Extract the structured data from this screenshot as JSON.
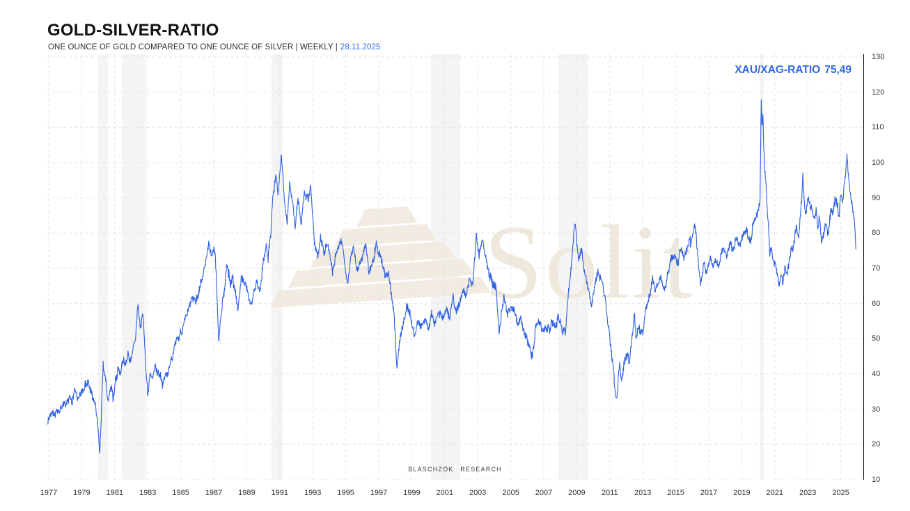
{
  "header": {
    "title": "GOLD-SILVER-RATIO",
    "subtitle": "ONE OUNCE OF GOLD COMPARED TO ONE OUNCE OF SILVER | WEEKLY |",
    "date": "28.11.2025"
  },
  "legend": {
    "label": "XAU/XAG-RATIO",
    "value": "75,49"
  },
  "watermark": {
    "text": "Solit",
    "logo": "gold-bars-pyramid"
  },
  "footer": {
    "credit": "BLASCHZOK RESEARCH"
  },
  "colors": {
    "line": "#2d5fe2",
    "accent": "#3168e6",
    "grid": "#e3e3e3",
    "band": "#f4f4f4",
    "axis": "#000000",
    "watermark_fill": "#f1ebe1",
    "watermark_text": "#eee8dd",
    "label": "#333333"
  },
  "chart_data": {
    "type": "line",
    "title": "GOLD-SILVER-RATIO",
    "xlabel": "",
    "ylabel": "",
    "ylim": [
      10,
      130
    ],
    "y_ticks": [
      10,
      20,
      30,
      40,
      50,
      60,
      70,
      80,
      90,
      100,
      110,
      120,
      130
    ],
    "x_ticks": [
      1977,
      1979,
      1981,
      1983,
      1985,
      1987,
      1989,
      1991,
      1993,
      1995,
      1997,
      1999,
      2001,
      2003,
      2005,
      2007,
      2009,
      2011,
      2013,
      2015,
      2017,
      2019,
      2021,
      2023,
      2025
    ],
    "grid": "dashed",
    "legend_position": "top-right",
    "shaded_periods": [
      [
        1980.0,
        1980.59
      ],
      [
        1981.43,
        1982.91
      ],
      [
        1990.5,
        1991.18
      ],
      [
        2000.16,
        2001.94
      ],
      [
        2007.89,
        2009.66
      ],
      [
        2020.08,
        2020.33
      ]
    ],
    "series": [
      {
        "name": "XAU/XAG-RATIO",
        "last_value": 75.49,
        "points": [
          [
            1976.95,
            27.5
          ],
          [
            1977.1,
            28.5
          ],
          [
            1977.3,
            29.2
          ],
          [
            1977.5,
            29.0
          ],
          [
            1977.7,
            30.2
          ],
          [
            1977.9,
            31.0
          ],
          [
            1978.1,
            31.4
          ],
          [
            1978.25,
            33.2
          ],
          [
            1978.4,
            32.3
          ],
          [
            1978.6,
            35.3
          ],
          [
            1978.8,
            33.1
          ],
          [
            1979.0,
            34.5
          ],
          [
            1979.2,
            37.8
          ],
          [
            1979.4,
            37.2
          ],
          [
            1979.6,
            34.0
          ],
          [
            1979.8,
            31.7
          ],
          [
            1979.95,
            26.0
          ],
          [
            1980.1,
            17.3
          ],
          [
            1980.3,
            42.4
          ],
          [
            1980.45,
            38.0
          ],
          [
            1980.6,
            32.1
          ],
          [
            1980.8,
            35.7
          ],
          [
            1980.9,
            32.3
          ],
          [
            1981.1,
            39.5
          ],
          [
            1981.2,
            41.6
          ],
          [
            1981.35,
            40.0
          ],
          [
            1981.5,
            43.6
          ],
          [
            1981.65,
            42.5
          ],
          [
            1981.8,
            45.0
          ],
          [
            1981.95,
            43.5
          ],
          [
            1982.1,
            46.5
          ],
          [
            1982.25,
            49.0
          ],
          [
            1982.4,
            60.3
          ],
          [
            1982.55,
            53.4
          ],
          [
            1982.7,
            57.4
          ],
          [
            1982.85,
            45.0
          ],
          [
            1983.0,
            34.3
          ],
          [
            1983.15,
            41.0
          ],
          [
            1983.3,
            38.5
          ],
          [
            1983.45,
            42.0
          ],
          [
            1983.6,
            39.5
          ],
          [
            1983.75,
            40.5
          ],
          [
            1983.9,
            37.6
          ],
          [
            1984.1,
            39.5
          ],
          [
            1984.3,
            42.0
          ],
          [
            1984.6,
            47.5
          ],
          [
            1984.8,
            49.5
          ],
          [
            1985.0,
            52.0
          ],
          [
            1985.2,
            54.5
          ],
          [
            1985.4,
            57.4
          ],
          [
            1985.6,
            60.0
          ],
          [
            1985.8,
            61.9
          ],
          [
            1985.9,
            59.9
          ],
          [
            1986.1,
            63.5
          ],
          [
            1986.3,
            67.8
          ],
          [
            1986.5,
            72.0
          ],
          [
            1986.7,
            76.1
          ],
          [
            1986.85,
            73.5
          ],
          [
            1987.0,
            75.0
          ],
          [
            1987.1,
            73.8
          ],
          [
            1987.3,
            49.9
          ],
          [
            1987.45,
            57.0
          ],
          [
            1987.6,
            62.7
          ],
          [
            1987.8,
            71.6
          ],
          [
            1988.0,
            65.3
          ],
          [
            1988.15,
            67.5
          ],
          [
            1988.3,
            63.7
          ],
          [
            1988.5,
            58.3
          ],
          [
            1988.7,
            68.6
          ],
          [
            1988.85,
            66.0
          ],
          [
            1989.0,
            64.6
          ],
          [
            1989.2,
            59.3
          ],
          [
            1989.4,
            62.5
          ],
          [
            1989.6,
            66.2
          ],
          [
            1989.8,
            63.9
          ],
          [
            1990.0,
            71.8
          ],
          [
            1990.2,
            77.1
          ],
          [
            1990.3,
            73.2
          ],
          [
            1990.45,
            80.0
          ],
          [
            1990.6,
            90.9
          ],
          [
            1990.8,
            96.2
          ],
          [
            1990.9,
            90.3
          ],
          [
            1991.1,
            101.8
          ],
          [
            1991.3,
            88.3
          ],
          [
            1991.45,
            83.0
          ],
          [
            1991.6,
            94.3
          ],
          [
            1991.8,
            87.9
          ],
          [
            1991.95,
            82.0
          ],
          [
            1992.1,
            89.9
          ],
          [
            1992.3,
            83.0
          ],
          [
            1992.5,
            91.9
          ],
          [
            1992.7,
            88.9
          ],
          [
            1992.9,
            92.3
          ],
          [
            1993.1,
            77.1
          ],
          [
            1993.3,
            73.2
          ],
          [
            1993.5,
            79.1
          ],
          [
            1993.7,
            74.8
          ],
          [
            1993.9,
            77.1
          ],
          [
            1994.2,
            68.6
          ],
          [
            1994.4,
            74.2
          ],
          [
            1994.6,
            76.1
          ],
          [
            1994.8,
            77.1
          ],
          [
            1995.1,
            65.7
          ],
          [
            1995.3,
            73.2
          ],
          [
            1995.5,
            76.5
          ],
          [
            1995.7,
            69.2
          ],
          [
            1996.0,
            73.2
          ],
          [
            1996.2,
            76.5
          ],
          [
            1996.4,
            69.6
          ],
          [
            1996.7,
            73.2
          ],
          [
            1996.85,
            77.7
          ],
          [
            1997.0,
            74.0
          ],
          [
            1997.2,
            71.8
          ],
          [
            1997.4,
            67.2
          ],
          [
            1997.6,
            67.8
          ],
          [
            1997.9,
            58.7
          ],
          [
            1998.1,
            41.6
          ],
          [
            1998.3,
            50.5
          ],
          [
            1998.5,
            54.0
          ],
          [
            1998.7,
            59.5
          ],
          [
            1998.9,
            56.8
          ],
          [
            1999.2,
            50.5
          ],
          [
            1999.4,
            55.8
          ],
          [
            1999.55,
            52.8
          ],
          [
            1999.8,
            55.8
          ],
          [
            2000.0,
            53.4
          ],
          [
            2000.2,
            56.4
          ],
          [
            2000.4,
            53.8
          ],
          [
            2000.6,
            58.0
          ],
          [
            2000.8,
            56.0
          ],
          [
            2001.1,
            58.7
          ],
          [
            2001.3,
            56.0
          ],
          [
            2001.5,
            61.3
          ],
          [
            2001.7,
            57.4
          ],
          [
            2001.9,
            59.9
          ],
          [
            2002.1,
            63.9
          ],
          [
            2002.3,
            61.3
          ],
          [
            2002.5,
            67.8
          ],
          [
            2002.7,
            65.3
          ],
          [
            2002.9,
            79.7
          ],
          [
            2003.1,
            73.8
          ],
          [
            2003.3,
            79.1
          ],
          [
            2003.5,
            72.5
          ],
          [
            2003.7,
            68.6
          ],
          [
            2003.9,
            64.6
          ],
          [
            2004.1,
            64.9
          ],
          [
            2004.3,
            51.4
          ],
          [
            2004.45,
            58.7
          ],
          [
            2004.6,
            61.3
          ],
          [
            2004.8,
            56.4
          ],
          [
            2005.0,
            59.3
          ],
          [
            2005.2,
            58.7
          ],
          [
            2005.4,
            54.8
          ],
          [
            2005.6,
            56.0
          ],
          [
            2005.9,
            50.5
          ],
          [
            2006.1,
            48.9
          ],
          [
            2006.3,
            45.1
          ],
          [
            2006.5,
            52.8
          ],
          [
            2006.7,
            56.0
          ],
          [
            2006.9,
            52.0
          ],
          [
            2007.1,
            54.0
          ],
          [
            2007.3,
            52.4
          ],
          [
            2007.5,
            54.4
          ],
          [
            2007.7,
            53.8
          ],
          [
            2007.9,
            56.4
          ],
          [
            2008.1,
            52.8
          ],
          [
            2008.3,
            51.1
          ],
          [
            2008.5,
            63.9
          ],
          [
            2008.7,
            72.5
          ],
          [
            2008.9,
            84.4
          ],
          [
            2009.0,
            77.1
          ],
          [
            2009.1,
            71.8
          ],
          [
            2009.3,
            74.8
          ],
          [
            2009.5,
            68.6
          ],
          [
            2009.7,
            63.3
          ],
          [
            2009.9,
            60.0
          ],
          [
            2010.1,
            66.0
          ],
          [
            2010.3,
            69.8
          ],
          [
            2010.5,
            66.0
          ],
          [
            2010.7,
            62.7
          ],
          [
            2010.9,
            54.4
          ],
          [
            2011.1,
            45.5
          ],
          [
            2011.25,
            39.0
          ],
          [
            2011.4,
            31.9
          ],
          [
            2011.6,
            42.2
          ],
          [
            2011.7,
            39.0
          ],
          [
            2011.9,
            43.6
          ],
          [
            2012.0,
            46.1
          ],
          [
            2012.2,
            43.0
          ],
          [
            2012.35,
            50.1
          ],
          [
            2012.5,
            56.8
          ],
          [
            2012.6,
            50.1
          ],
          [
            2012.75,
            53.0
          ],
          [
            2013.0,
            52.0
          ],
          [
            2013.2,
            58.7
          ],
          [
            2013.4,
            62.7
          ],
          [
            2013.6,
            66.6
          ],
          [
            2013.75,
            62.9
          ],
          [
            2013.9,
            65.3
          ],
          [
            2014.1,
            67.6
          ],
          [
            2014.3,
            63.3
          ],
          [
            2014.5,
            68.6
          ],
          [
            2014.7,
            71.8
          ],
          [
            2014.9,
            74.2
          ],
          [
            2015.1,
            71.2
          ],
          [
            2015.3,
            75.7
          ],
          [
            2015.5,
            73.2
          ],
          [
            2015.7,
            76.7
          ],
          [
            2015.9,
            77.7
          ],
          [
            2016.15,
            82.6
          ],
          [
            2016.5,
            65.9
          ],
          [
            2016.7,
            71.8
          ],
          [
            2016.85,
            69.2
          ],
          [
            2017.1,
            73.2
          ],
          [
            2017.25,
            70.5
          ],
          [
            2017.4,
            72.8
          ],
          [
            2017.6,
            71.2
          ],
          [
            2017.8,
            75.5
          ],
          [
            2018.1,
            73.5
          ],
          [
            2018.3,
            76.5
          ],
          [
            2018.5,
            75.5
          ],
          [
            2018.7,
            78.7
          ],
          [
            2018.9,
            76.7
          ],
          [
            2019.1,
            79.1
          ],
          [
            2019.3,
            80.4
          ],
          [
            2019.5,
            77.1
          ],
          [
            2019.7,
            82.4
          ],
          [
            2019.9,
            85.0
          ],
          [
            2020.1,
            87.4
          ],
          [
            2020.18,
            118.5
          ],
          [
            2020.22,
            110.0
          ],
          [
            2020.28,
            113.0
          ],
          [
            2020.38,
            99.2
          ],
          [
            2020.5,
            90.9
          ],
          [
            2020.6,
            83.0
          ],
          [
            2020.7,
            73.8
          ],
          [
            2020.8,
            76.5
          ],
          [
            2020.9,
            72.8
          ],
          [
            2021.1,
            69.8
          ],
          [
            2021.25,
            64.7
          ],
          [
            2021.4,
            67.8
          ],
          [
            2021.5,
            66.2
          ],
          [
            2021.6,
            70.5
          ],
          [
            2021.75,
            68.8
          ],
          [
            2021.9,
            72.8
          ],
          [
            2022.0,
            76.5
          ],
          [
            2022.1,
            74.2
          ],
          [
            2022.3,
            81.4
          ],
          [
            2022.45,
            79.1
          ],
          [
            2022.6,
            87.0
          ],
          [
            2022.7,
            96.2
          ],
          [
            2022.8,
            87.0
          ],
          [
            2022.9,
            85.4
          ],
          [
            2023.0,
            90.9
          ],
          [
            2023.2,
            87.6
          ],
          [
            2023.35,
            84.0
          ],
          [
            2023.5,
            87.0
          ],
          [
            2023.6,
            82.4
          ],
          [
            2023.7,
            84.6
          ],
          [
            2023.85,
            77.1
          ],
          [
            2024.0,
            80.4
          ],
          [
            2024.1,
            83.0
          ],
          [
            2024.25,
            79.5
          ],
          [
            2024.4,
            87.6
          ],
          [
            2024.5,
            85.6
          ],
          [
            2024.65,
            89.9
          ],
          [
            2024.8,
            87.0
          ],
          [
            2024.9,
            85.0
          ],
          [
            2025.0,
            90.3
          ],
          [
            2025.1,
            87.9
          ],
          [
            2025.25,
            94.3
          ],
          [
            2025.38,
            103.4
          ],
          [
            2025.5,
            94.3
          ],
          [
            2025.6,
            90.3
          ],
          [
            2025.7,
            87.9
          ],
          [
            2025.78,
            85.6
          ],
          [
            2025.85,
            83.0
          ],
          [
            2025.91,
            75.49
          ]
        ]
      }
    ]
  }
}
